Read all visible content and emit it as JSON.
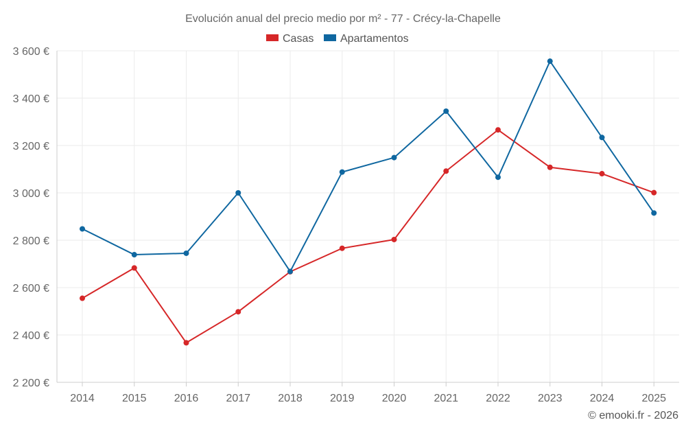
{
  "chart_data": {
    "type": "line",
    "title": "Evolución anual del precio medio por m² - 77 - Crécy-la-Chapelle",
    "categories": [
      "2014",
      "2015",
      "2016",
      "2017",
      "2018",
      "2019",
      "2020",
      "2021",
      "2022",
      "2023",
      "2024",
      "2025"
    ],
    "series": [
      {
        "name": "Casas",
        "color": "#d62728",
        "values": [
          2555,
          2683,
          2367,
          2498,
          2667,
          2766,
          2803,
          3092,
          3266,
          3108,
          3081,
          3001
        ]
      },
      {
        "name": "Apartamentos",
        "color": "#0f67a0",
        "values": [
          2848,
          2739,
          2745,
          3000,
          2668,
          3088,
          3149,
          3345,
          3066,
          3556,
          3234,
          2915
        ]
      }
    ],
    "y_ticks": [
      2200,
      2400,
      2600,
      2800,
      3000,
      3200,
      3400,
      3600
    ],
    "y_tick_labels": [
      "2 200 €",
      "2 400 €",
      "2 600 €",
      "2 800 €",
      "3 000 €",
      "3 200 €",
      "3 400 €",
      "3 600 €"
    ],
    "ylim": [
      2200,
      3600
    ],
    "grid": true,
    "legend_position": "top-center",
    "xlabel": "",
    "ylabel": ""
  },
  "credit": "© emooki.fr - 2026"
}
